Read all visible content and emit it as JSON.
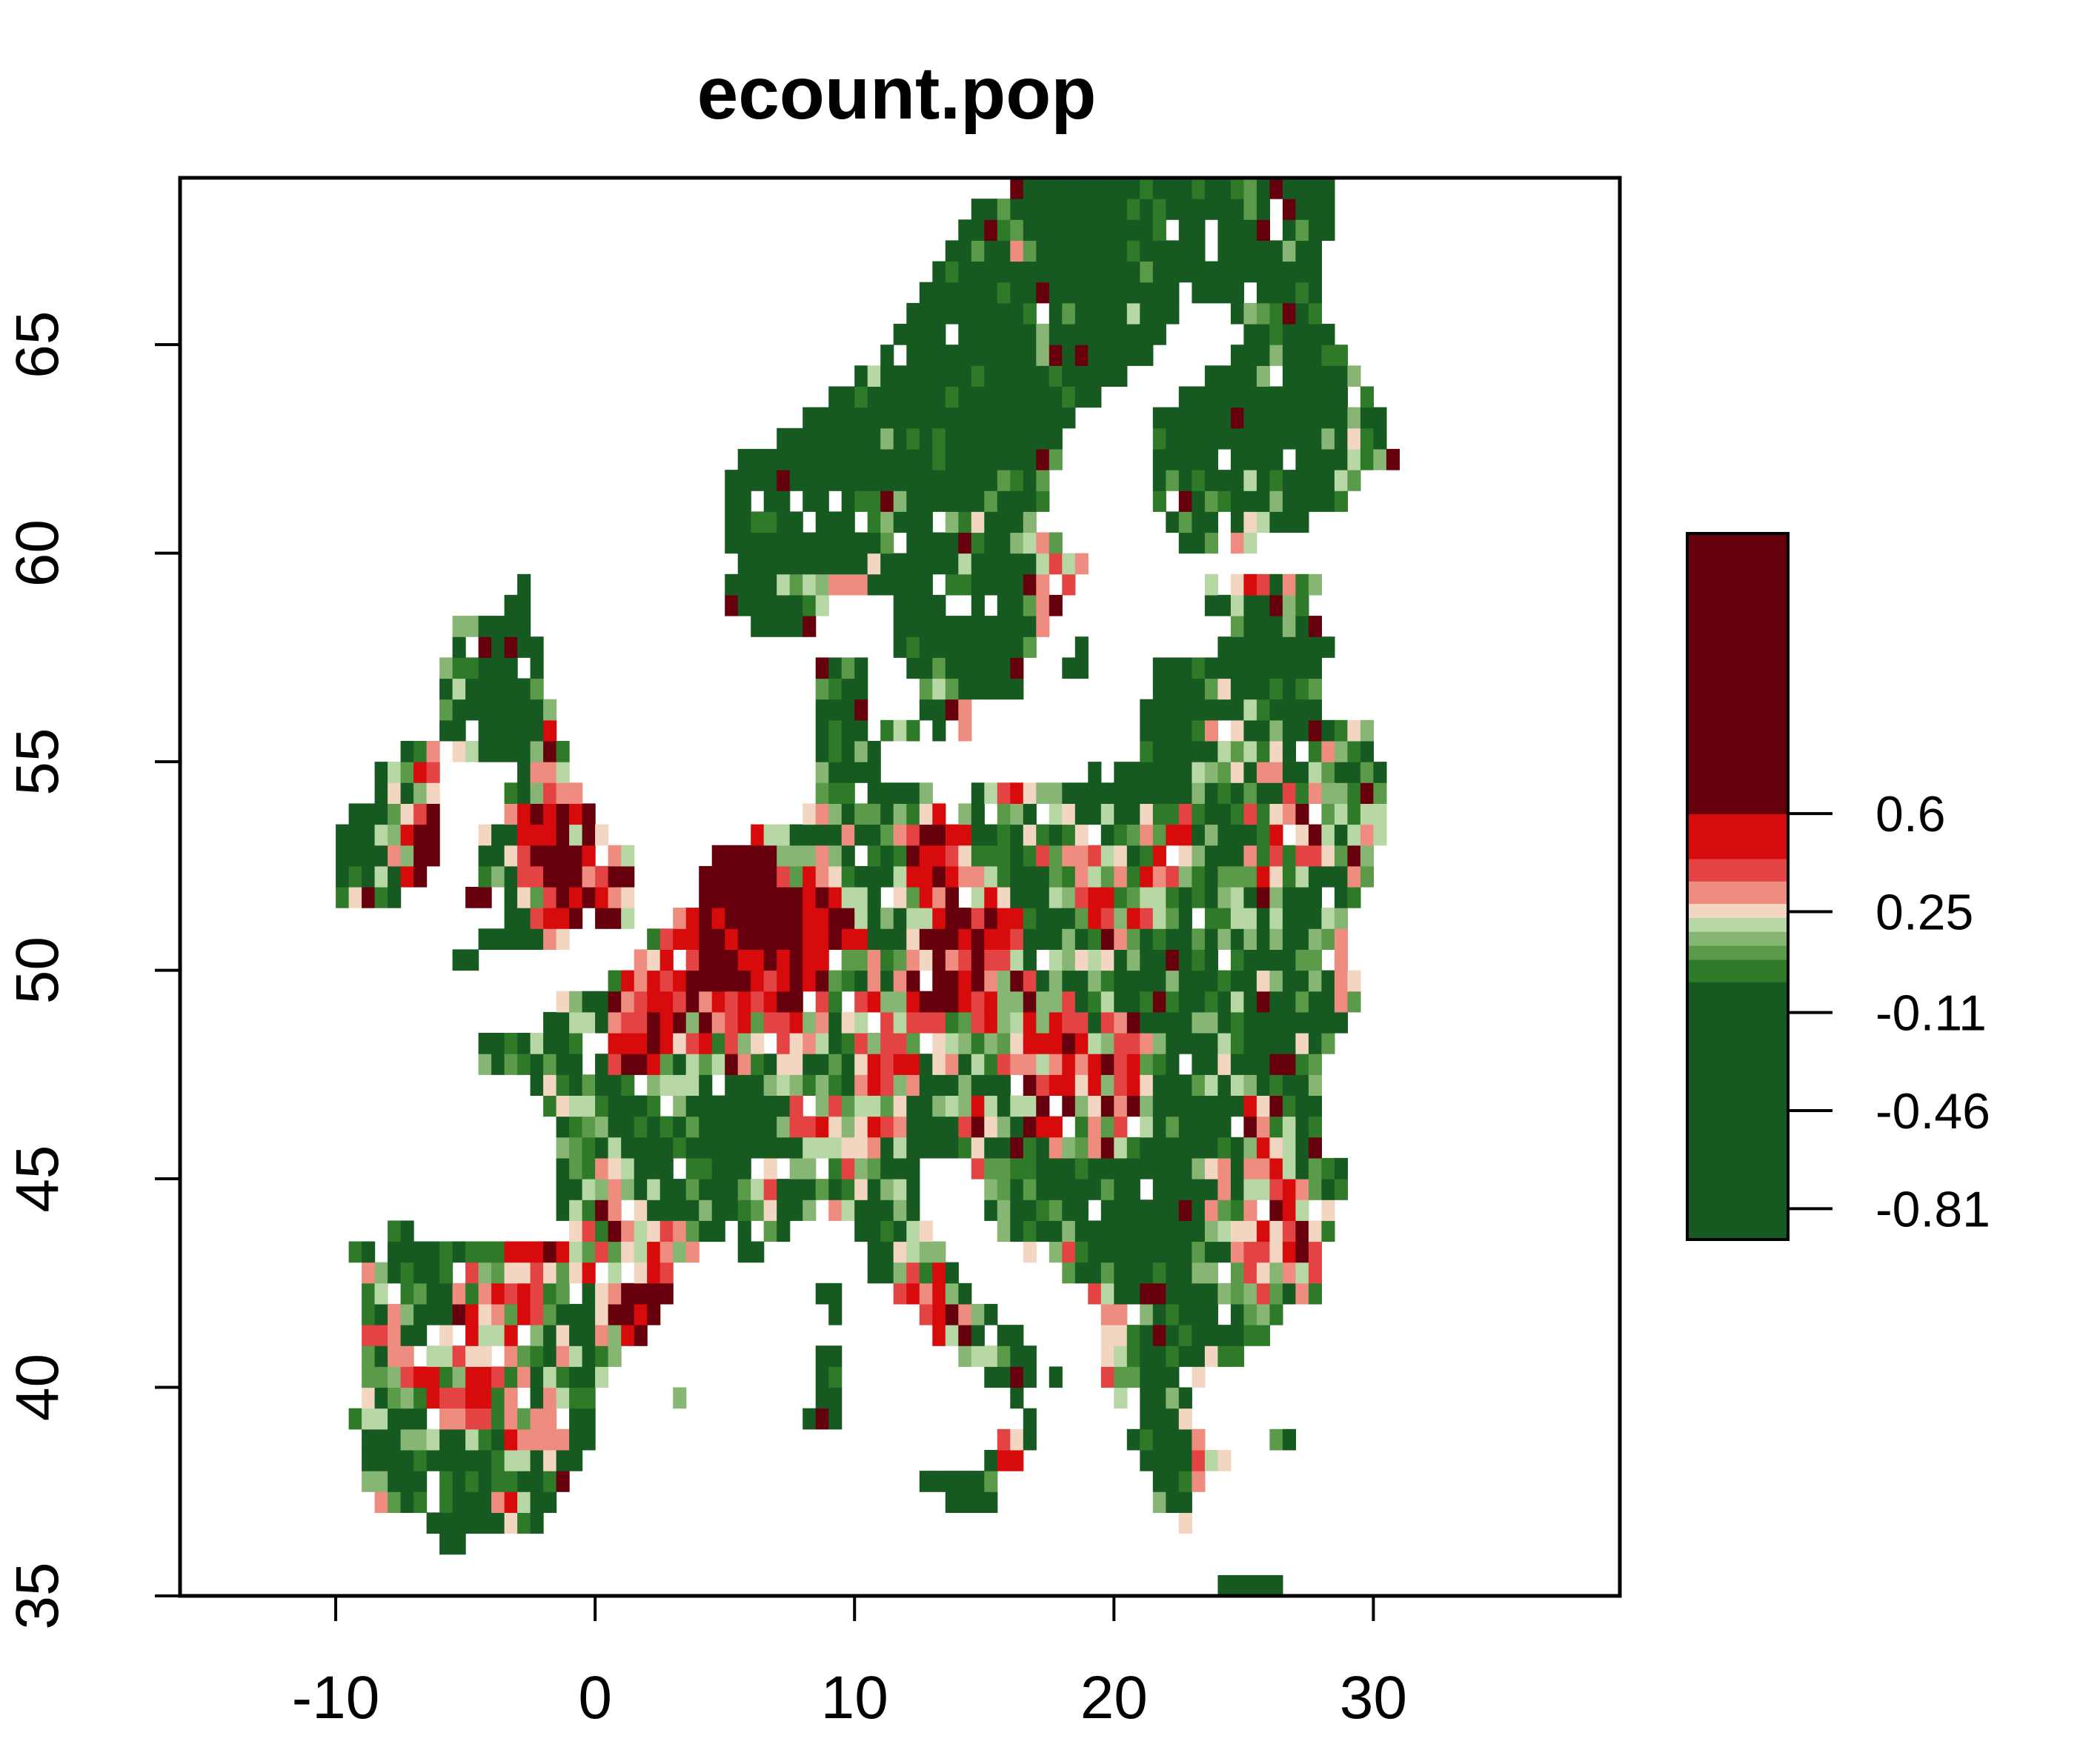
{
  "chart_data": {
    "type": "heatmap",
    "title": "ecount.pop",
    "xlabel": "",
    "ylabel": "",
    "xlim": [
      -16,
      39.5
    ],
    "ylim": [
      35,
      69
    ],
    "x_ticks": [
      -10,
      0,
      10,
      20,
      30
    ],
    "y_ticks": [
      35,
      40,
      45,
      50,
      55,
      60,
      65
    ],
    "grid": false,
    "legend": {
      "placement": "right",
      "range": [
        -0.92,
        1.6
      ],
      "ticks": [
        {
          "value": -0.81,
          "label": "-0.81"
        },
        {
          "value": -0.46,
          "label": "-0.46"
        },
        {
          "value": -0.11,
          "label": "-0.11"
        },
        {
          "value": 0.25,
          "label": "0.25"
        },
        {
          "value": 0.6,
          "label": "0.6"
        }
      ],
      "bins": [
        {
          "from": -0.92,
          "to": 0.0,
          "color": "#165a21"
        },
        {
          "from": 0.0,
          "to": 0.08,
          "color": "#2e7a28"
        },
        {
          "from": 0.08,
          "to": 0.13,
          "color": "#5b9a48"
        },
        {
          "from": 0.13,
          "to": 0.18,
          "color": "#86b574"
        },
        {
          "from": 0.18,
          "to": 0.23,
          "color": "#b7d7a4"
        },
        {
          "from": 0.23,
          "to": 0.28,
          "color": "#f3d6c2"
        },
        {
          "from": 0.28,
          "to": 0.36,
          "color": "#ef8c80"
        },
        {
          "from": 0.36,
          "to": 0.44,
          "color": "#e44343"
        },
        {
          "from": 0.44,
          "to": 0.6,
          "color": "#d70b0b"
        },
        {
          "from": 0.6,
          "to": 1.6,
          "color": "#67000d"
        }
      ]
    },
    "palette": [
      "#165a21",
      "#2e7a28",
      "#5b9a48",
      "#86b574",
      "#b7d7a4",
      "#f3d6c2",
      "#ef8c80",
      "#e44343",
      "#d70b0b",
      "#67000d"
    ],
    "cell_size_degrees": [
      0.5,
      0.5
    ]
  }
}
